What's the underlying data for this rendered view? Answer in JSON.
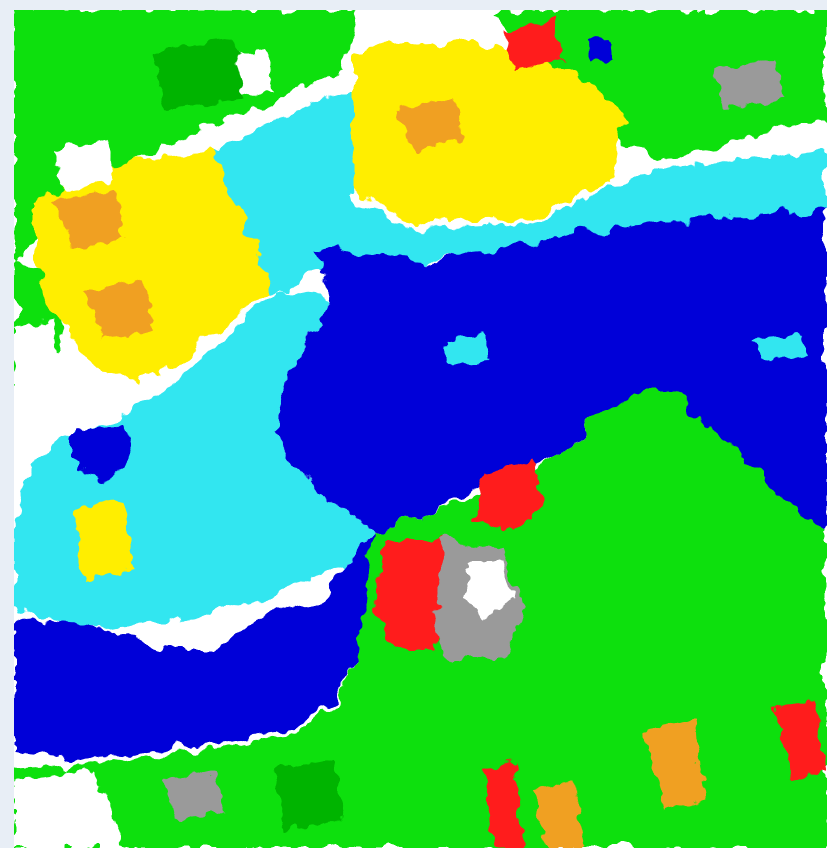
{
  "map": {
    "type": "land-cover-classification",
    "classes": [
      {
        "key": "deep-water",
        "color": "#0000d8"
      },
      {
        "key": "shallow-water",
        "color": "#33e6f0"
      },
      {
        "key": "sediment",
        "color": "#ffee00"
      },
      {
        "key": "wet-soil",
        "color": "#f0a020"
      },
      {
        "key": "bare-red",
        "color": "#ff1a1a"
      },
      {
        "key": "vegetation",
        "color": "#11e011"
      },
      {
        "key": "dark-vegetation",
        "color": "#00b400"
      },
      {
        "key": "gray-surface",
        "color": "#9a9a9a"
      },
      {
        "key": "light-gray",
        "color": "#c8c8c8"
      },
      {
        "key": "white-unclassified",
        "color": "#ffffff"
      }
    ]
  }
}
